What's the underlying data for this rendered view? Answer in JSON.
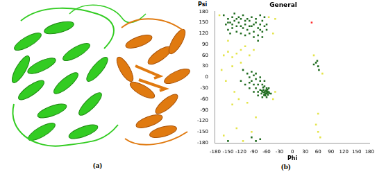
{
  "figure_labels": [
    "(a)",
    "(b)"
  ],
  "chart_data": {
    "type": "scatter",
    "title": "General",
    "x_label": "Phi",
    "y_label": "Psi",
    "xlim": [
      -180,
      180
    ],
    "ylim": [
      -180,
      180
    ],
    "xticks": [
      -180,
      -150,
      -120,
      -90,
      -60,
      -30,
      0,
      30,
      60,
      90,
      120,
      150,
      180
    ],
    "yticks": [
      -180,
      -150,
      -120,
      -90,
      -60,
      -30,
      0,
      30,
      60,
      90,
      120,
      150,
      180
    ],
    "grid": false,
    "series": [
      {
        "color": "#1f6b1f",
        "marker": "square",
        "x": [
          -150,
          -145,
          -140,
          -135,
          -130,
          -125,
          -120,
          -115,
          -110,
          -105,
          -100,
          -95,
          -90,
          -85,
          -80,
          -75,
          -70,
          -65,
          -155,
          -160,
          -140,
          -130,
          -120,
          -110,
          -100,
          -90,
          -80,
          -70,
          -65,
          -75,
          -95,
          -115,
          -135,
          -150,
          -145,
          -125,
          -105,
          -85,
          -60,
          -60,
          -70,
          -80,
          -150,
          -140,
          -120,
          -100,
          -90,
          -130,
          -110,
          -75,
          -65,
          -60,
          -62,
          -58,
          -67,
          -70,
          -63,
          -55,
          -60,
          -72,
          -66,
          -61,
          -64,
          -57,
          -68,
          -75,
          -80,
          -85,
          -90,
          -95,
          -100,
          -80,
          -70,
          -75,
          -85,
          -65,
          -55,
          -50,
          -60,
          -70,
          -80,
          -90,
          -100,
          -110,
          -120,
          -105,
          -90,
          -75,
          -65,
          -115,
          -95,
          -85,
          -100,
          -62,
          -59,
          -66,
          -71,
          -54,
          -58,
          55,
          60,
          58,
          62,
          50,
          -75,
          -85,
          -150,
          -95
        ],
        "values": [
          160,
          150,
          165,
          155,
          140,
          150,
          160,
          135,
          145,
          130,
          155,
          140,
          125,
          150,
          135,
          145,
          155,
          140,
          145,
          170,
          135,
          125,
          120,
          115,
          120,
          110,
          115,
          125,
          165,
          170,
          165,
          170,
          175,
          130,
          120,
          165,
          160,
          160,
          145,
          130,
          110,
          100,
          150,
          145,
          140,
          140,
          145,
          160,
          155,
          130,
          -40,
          -45,
          -38,
          -42,
          -35,
          -40,
          -50,
          -40,
          -30,
          -45,
          -42,
          -36,
          -47,
          -48,
          -28,
          -35,
          -40,
          -30,
          -20,
          -10,
          0,
          -20,
          -20,
          -10,
          -5,
          -25,
          -30,
          -45,
          -55,
          -55,
          -50,
          -40,
          -30,
          -20,
          -10,
          10,
          5,
          0,
          -10,
          20,
          15,
          10,
          -15,
          -44,
          -39,
          -49,
          -37,
          -44,
          -34,
          40,
          30,
          45,
          20,
          35,
          -170,
          -175,
          -175,
          -165
        ]
      },
      {
        "color": "#e4e44a",
        "marker": "square",
        "x": [
          -160,
          -150,
          -130,
          -120,
          -140,
          -110,
          -150,
          -100,
          -90,
          -165,
          -155,
          -140,
          -120,
          -135,
          -125,
          -105,
          -140,
          -160,
          -130,
          -115,
          -95,
          -85,
          -45,
          -40,
          -45,
          -40,
          55,
          60,
          65,
          50,
          70,
          60,
          -55,
          -170
        ],
        "values": [
          60,
          70,
          65,
          75,
          55,
          85,
          100,
          60,
          75,
          20,
          -10,
          30,
          40,
          -40,
          -60,
          -70,
          -75,
          -160,
          -140,
          -175,
          -150,
          -110,
          -60,
          -40,
          120,
          160,
          -130,
          -150,
          -165,
          60,
          10,
          -100,
          165,
          170
        ]
      },
      {
        "color": "#ff2a2a",
        "marker": "square",
        "x": [
          45
        ],
        "values": [
          150
        ]
      }
    ]
  }
}
